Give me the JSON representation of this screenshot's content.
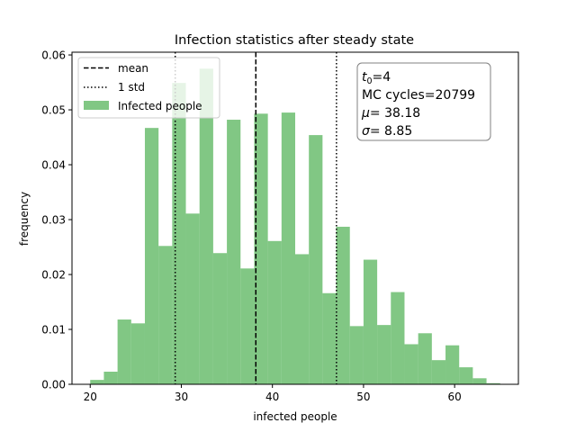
{
  "chart_data": {
    "type": "bar",
    "title": "Infection statistics after steady state",
    "xlabel": "infected people",
    "ylabel": "frequency",
    "xlim": [
      18,
      67
    ],
    "ylim": [
      0,
      0.0605
    ],
    "x_ticks": [
      20,
      30,
      40,
      50,
      60
    ],
    "y_ticks": [
      0.0,
      0.01,
      0.02,
      0.03,
      0.04,
      0.05,
      0.06
    ],
    "y_tick_labels": [
      "0.00",
      "0.01",
      "0.02",
      "0.03",
      "0.04",
      "0.05",
      "0.06"
    ],
    "bin_width": 1.5,
    "bins": [
      {
        "x0": 20.0,
        "value": 0.0008
      },
      {
        "x0": 21.5,
        "value": 0.0023
      },
      {
        "x0": 23.0,
        "value": 0.0118
      },
      {
        "x0": 24.5,
        "value": 0.0111
      },
      {
        "x0": 26.0,
        "value": 0.0467
      },
      {
        "x0": 27.5,
        "value": 0.0252
      },
      {
        "x0": 29.0,
        "value": 0.0549
      },
      {
        "x0": 30.5,
        "value": 0.0311
      },
      {
        "x0": 32.0,
        "value": 0.0575
      },
      {
        "x0": 33.5,
        "value": 0.0239
      },
      {
        "x0": 35.0,
        "value": 0.0482
      },
      {
        "x0": 36.5,
        "value": 0.0211
      },
      {
        "x0": 38.0,
        "value": 0.0493
      },
      {
        "x0": 39.5,
        "value": 0.0261
      },
      {
        "x0": 41.0,
        "value": 0.0495
      },
      {
        "x0": 42.5,
        "value": 0.0237
      },
      {
        "x0": 44.0,
        "value": 0.0454
      },
      {
        "x0": 45.5,
        "value": 0.0166
      },
      {
        "x0": 47.0,
        "value": 0.0287
      },
      {
        "x0": 48.5,
        "value": 0.0106
      },
      {
        "x0": 50.0,
        "value": 0.0227
      },
      {
        "x0": 51.5,
        "value": 0.0108
      },
      {
        "x0": 53.0,
        "value": 0.0168
      },
      {
        "x0": 54.5,
        "value": 0.0073
      },
      {
        "x0": 56.0,
        "value": 0.0093
      },
      {
        "x0": 57.5,
        "value": 0.0044
      },
      {
        "x0": 59.0,
        "value": 0.0071
      },
      {
        "x0": 60.5,
        "value": 0.0031
      },
      {
        "x0": 62.0,
        "value": 0.0011
      },
      {
        "x0": 63.5,
        "value": 0.0002
      }
    ],
    "bar_color": "#4caf50",
    "bar_opacity": 0.7,
    "vlines": [
      {
        "x": 38.18,
        "style": "dashed",
        "label": "mean"
      },
      {
        "x": 29.33,
        "style": "dotted",
        "label": "1 std"
      },
      {
        "x": 47.03,
        "style": "dotted",
        "label": ""
      }
    ],
    "legend": {
      "placement": "upper-left",
      "entries": [
        {
          "label": "mean",
          "kind": "dashed-line"
        },
        {
          "label": "1 std",
          "kind": "dotted-line"
        },
        {
          "label": "Infected people",
          "kind": "patch"
        }
      ]
    },
    "annotation": {
      "placement": "upper-right",
      "t0_value": "=4",
      "mc_line": "MC cycles=20799",
      "mu_value": "= 38.18",
      "sigma_value": "= 8.85"
    }
  }
}
